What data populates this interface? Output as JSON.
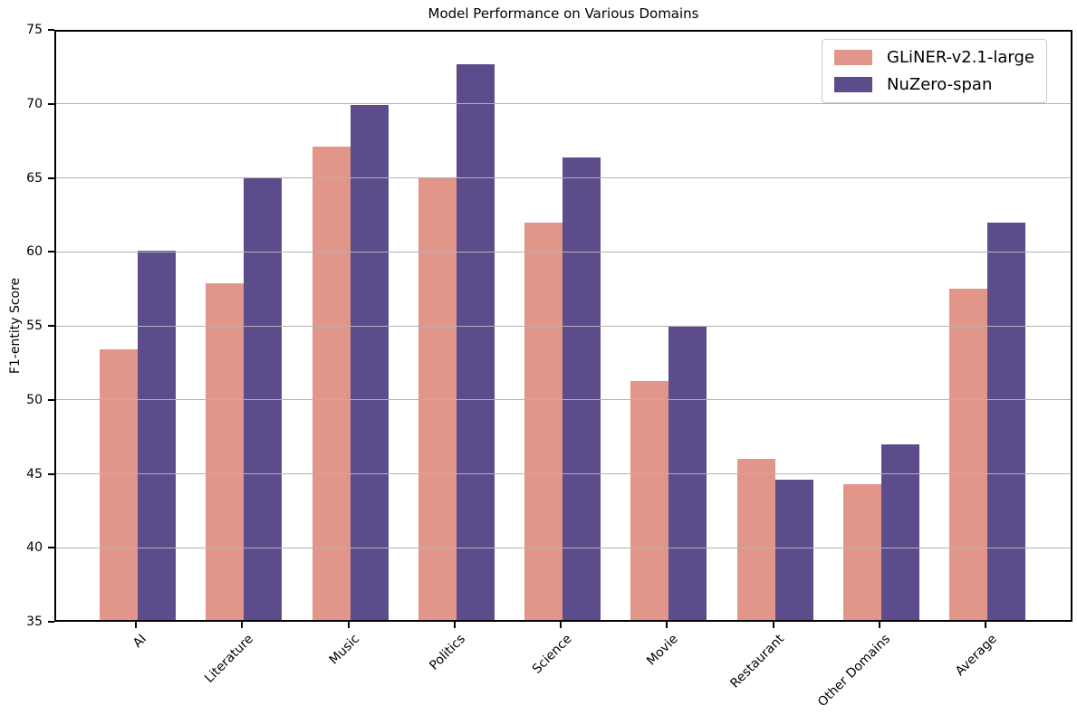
{
  "chart_data": {
    "type": "bar",
    "title": "Model Performance on Various Domains",
    "xlabel": "",
    "ylabel": "F1-entity Score",
    "categories": [
      "AI",
      "Literature",
      "Music",
      "Politics",
      "Science",
      "Movie",
      "Restaurant",
      "Other Domains",
      "Average"
    ],
    "series": [
      {
        "name": "GLiNER-v2.1-large",
        "color": "#E2968A",
        "values": [
          53.4,
          57.9,
          67.1,
          65.0,
          62.0,
          51.3,
          46.0,
          44.3,
          57.5
        ]
      },
      {
        "name": "NuZero-span",
        "color": "#5D4C8C",
        "values": [
          60.1,
          65.0,
          69.9,
          72.7,
          66.4,
          55.0,
          44.6,
          47.0,
          62.0
        ]
      }
    ],
    "ylim": [
      35,
      75
    ],
    "yticks": [
      35,
      40,
      45,
      50,
      55,
      60,
      65,
      70,
      75
    ],
    "x_tick_rotation": 45,
    "grid": "horizontal",
    "grid_above_bars": true,
    "grid_color": "#b2b2b2",
    "legend_position": "upper-right",
    "frame_color": "#000000",
    "background_color": "#ffffff"
  }
}
